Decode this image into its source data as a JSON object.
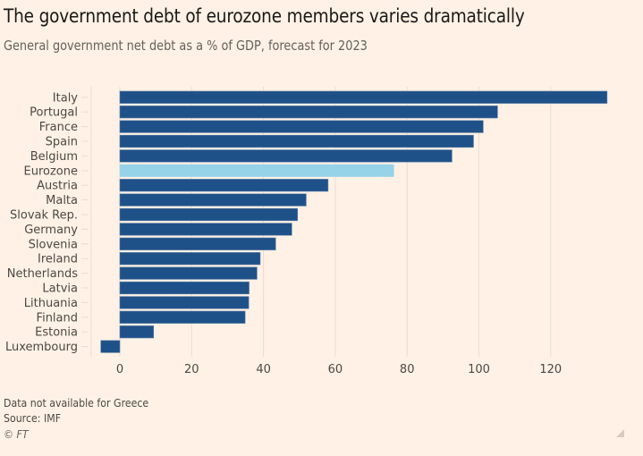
{
  "header": {
    "title": "The government debt of eurozone members varies dramatically",
    "subtitle": "General government net debt as a % of GDP, forecast for 2023"
  },
  "footer": {
    "note": "Data not available for Greece",
    "source": "Source: IMF",
    "copyright": "© FT"
  },
  "colors": {
    "background": "#FFF1E5",
    "bar": "#1F5189",
    "highlight_bar": "#96D2E8",
    "grid": "#E9DDD3",
    "text": "#33302E"
  },
  "chart_data": {
    "type": "bar",
    "orientation": "horizontal",
    "title": "The government debt of eurozone members varies dramatically",
    "subtitle": "General government net debt as a % of GDP, forecast for 2023",
    "xlabel": "",
    "ylabel": "",
    "categories": [
      "Italy",
      "Portugal",
      "France",
      "Spain",
      "Belgium",
      "Eurozone",
      "Austria",
      "Malta",
      "Slovak Rep.",
      "Germany",
      "Slovenia",
      "Ireland",
      "Netherlands",
      "Latvia",
      "Lithuania",
      "Finland",
      "Estonia",
      "Luxembourg"
    ],
    "values": [
      135.7,
      105.2,
      101.2,
      98.5,
      92.5,
      76.3,
      58.0,
      51.9,
      49.5,
      47.9,
      43.4,
      39.1,
      38.2,
      36.0,
      35.9,
      34.9,
      9.4,
      -5.3
    ],
    "highlight": [
      "Eurozone"
    ],
    "xlim": [
      -8,
      140
    ],
    "xticks": [
      0,
      20,
      40,
      60,
      80,
      100,
      120
    ],
    "grid": true,
    "legend": "none"
  }
}
